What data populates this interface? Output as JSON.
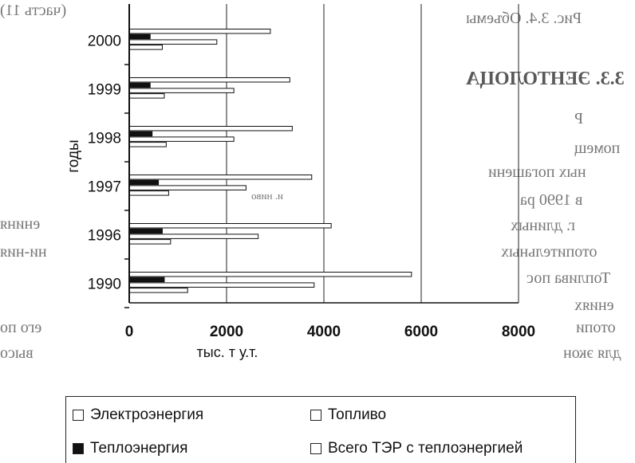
{
  "background_fragments": [
    {
      "text": "Рис. 3.4. Объемы",
      "cls": ""
    },
    {
      "text": "3.3. ЭЕНТОЛОЦА",
      "cls": "bold"
    },
    {
      "text": "Р",
      "cls": ""
    },
    {
      "text": "помещ",
      "cls": ""
    },
    {
      "text": "ных погашени",
      "cls": ""
    },
    {
      "text": "в 1990 ра",
      "cls": ""
    },
    {
      "text": "г. длиных",
      "cls": ""
    },
    {
      "text": "отопительных",
      "cls": ""
    },
    {
      "text": "Топлива пос",
      "cls": ""
    },
    {
      "text": "ениях",
      "cls": ""
    },
    {
      "text": "отопи",
      "cls": ""
    },
    {
      "text": "для экон",
      "cls": ""
    },
    {
      "text": "(часть 11)",
      "cls": ""
    },
    {
      "text": "ениня",
      "cls": ""
    },
    {
      "text": "ни-ния",
      "cls": ""
    },
    {
      "text": "его по",
      "cls": ""
    },
    {
      "text": "высо",
      "cls": ""
    },
    {
      "text": "и. ниво",
      "cls": ""
    }
  ],
  "chart_data": {
    "type": "bar",
    "orientation": "horizontal",
    "title": "",
    "xlabel": "тыс. т у.т.",
    "ylabel": "годы",
    "xlim": [
      0,
      8000
    ],
    "xticks": [
      0,
      2000,
      4000,
      6000,
      8000
    ],
    "categories": [
      "2000",
      "1999",
      "1998",
      "1997",
      "1996",
      "1990"
    ],
    "series": [
      {
        "name": "Всего ТЭР с теплоэнергией",
        "fill": "#ffffff",
        "values": [
          2900,
          3300,
          3350,
          3750,
          4150,
          5800
        ]
      },
      {
        "name": "Теплоэнергия",
        "fill": "#111111",
        "values": [
          430,
          430,
          470,
          600,
          680,
          720
        ]
      },
      {
        "name": "Топливо",
        "fill": "#ffffff",
        "values": [
          1800,
          2150,
          2150,
          2400,
          2650,
          3800
        ]
      },
      {
        "name": "Электроэнергия",
        "fill": "#ffffff",
        "values": [
          680,
          720,
          760,
          810,
          850,
          1200
        ]
      }
    ],
    "gridlines": "vertical",
    "legend_position": "bottom"
  },
  "legend": [
    {
      "label": "Электроэнергия",
      "filled": false
    },
    {
      "label": "Топливо",
      "filled": false
    },
    {
      "label": "Теплоэнергия",
      "filled": true
    },
    {
      "label": "Всего ТЭР с теплоэнергией",
      "filled": false
    }
  ]
}
